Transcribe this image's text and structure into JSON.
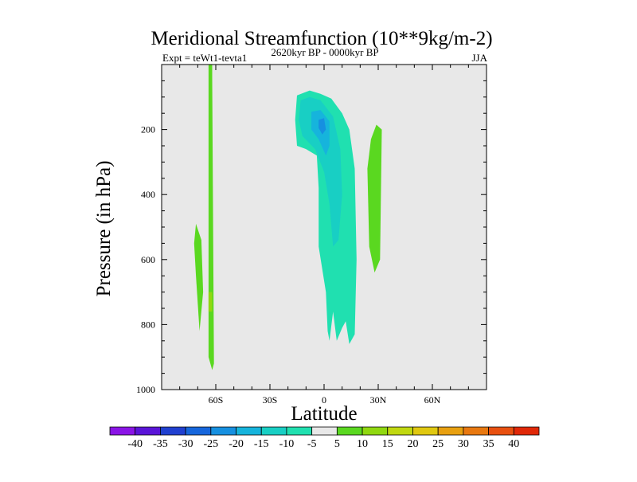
{
  "chart_data": {
    "type": "contour",
    "title": "Meridional Streamfunction (10**9kg/m-2)",
    "left_label": "Expt = teWt1-tevta1",
    "center_label": "2620kyr BP - 0000kyr BP",
    "right_label": "JJA",
    "xlabel": "Latitude",
    "ylabel": "Pressure (in hPa)",
    "xlim": [
      -90,
      90
    ],
    "ylim": [
      1000,
      0
    ],
    "x_ticks": [
      "60S",
      "30S",
      "0",
      "30N",
      "60N"
    ],
    "x_tick_values": [
      -60,
      -30,
      0,
      30,
      60
    ],
    "y_ticks": [
      "200",
      "400",
      "600",
      "800",
      "1000"
    ],
    "y_tick_values": [
      200,
      400,
      600,
      800,
      1000
    ],
    "colorbar": {
      "labels": [
        "-40",
        "-35",
        "-30",
        "-25",
        "-20",
        "-15",
        "-10",
        "-5",
        "5",
        "10",
        "15",
        "20",
        "25",
        "30",
        "35",
        "40"
      ],
      "colors": [
        "#8a14e6",
        "#5a14d8",
        "#2040d0",
        "#1666dc",
        "#1690e0",
        "#16b4dc",
        "#18cfc4",
        "#20e0b0",
        "#e8e8e8",
        "#5ad820",
        "#90d810",
        "#c0d810",
        "#e0c810",
        "#e8a010",
        "#e87810",
        "#e85010",
        "#e02808"
      ]
    },
    "regions": [
      {
        "name": "positive-left-tall",
        "level": 10,
        "color": "#5ad820",
        "points": [
          [
            -64,
            0
          ],
          [
            -62,
            0
          ],
          [
            -62,
            40
          ],
          [
            -61,
            920
          ],
          [
            -62,
            940
          ],
          [
            -64,
            900
          ],
          [
            -64,
            420
          ]
        ]
      },
      {
        "name": "positive-left-lower",
        "level": 10,
        "color": "#5ad820",
        "points": [
          [
            -71,
            490
          ],
          [
            -68,
            540
          ],
          [
            -67,
            700
          ],
          [
            -69,
            820
          ],
          [
            -71,
            650
          ],
          [
            -72,
            550
          ]
        ]
      },
      {
        "name": "positive-left-core",
        "level": 15,
        "color": "#90d810",
        "points": [
          [
            -64,
            700
          ],
          [
            -62,
            700
          ],
          [
            -62,
            760
          ],
          [
            -64,
            760
          ]
        ]
      },
      {
        "name": "negative-outer",
        "level": -5,
        "color": "#20e0b0",
        "points": [
          [
            -15,
            95
          ],
          [
            -8,
            80
          ],
          [
            -2,
            90
          ],
          [
            4,
            105
          ],
          [
            10,
            150
          ],
          [
            14,
            200
          ],
          [
            17,
            320
          ],
          [
            18,
            600
          ],
          [
            17,
            830
          ],
          [
            14,
            860
          ],
          [
            12,
            790
          ],
          [
            10,
            810
          ],
          [
            7,
            850
          ],
          [
            5,
            760
          ],
          [
            3,
            850
          ],
          [
            2,
            820
          ],
          [
            1,
            700
          ],
          [
            -3,
            560
          ],
          [
            -3,
            380
          ],
          [
            -4,
            280
          ],
          [
            -10,
            260
          ],
          [
            -15,
            250
          ],
          [
            -16,
            170
          ]
        ]
      },
      {
        "name": "negative-mid",
        "level": -10,
        "color": "#18cfc4",
        "points": [
          [
            -13,
            110
          ],
          [
            -8,
            100
          ],
          [
            -2,
            110
          ],
          [
            5,
            160
          ],
          [
            9,
            260
          ],
          [
            10,
            400
          ],
          [
            8,
            540
          ],
          [
            5,
            560
          ],
          [
            3,
            430
          ],
          [
            0,
            330
          ],
          [
            -5,
            260
          ],
          [
            -12,
            220
          ],
          [
            -14,
            170
          ]
        ]
      },
      {
        "name": "negative-inner",
        "level": -15,
        "color": "#16b4dc",
        "points": [
          [
            -7,
            145
          ],
          [
            -2,
            140
          ],
          [
            3,
            175
          ],
          [
            3,
            250
          ],
          [
            1,
            280
          ],
          [
            -3,
            230
          ],
          [
            -7,
            200
          ]
        ]
      },
      {
        "name": "negative-core",
        "level": -20,
        "color": "#1690e0",
        "points": [
          [
            -3,
            170
          ],
          [
            0,
            165
          ],
          [
            1,
            200
          ],
          [
            -1,
            215
          ],
          [
            -3,
            195
          ]
        ]
      },
      {
        "name": "positive-right",
        "level": 10,
        "color": "#5ad820",
        "points": [
          [
            29,
            185
          ],
          [
            32,
            200
          ],
          [
            31,
            600
          ],
          [
            28,
            640
          ],
          [
            25,
            560
          ],
          [
            24,
            320
          ],
          [
            26,
            230
          ]
        ]
      }
    ]
  }
}
